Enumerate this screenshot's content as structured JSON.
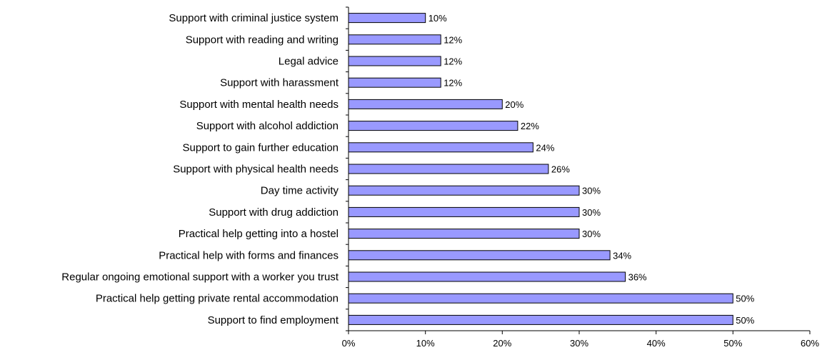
{
  "chart_data": {
    "type": "bar",
    "orientation": "horizontal",
    "title": "",
    "xlabel": "",
    "ylabel": "",
    "xlim": [
      0,
      60
    ],
    "x_ticks": [
      0,
      10,
      20,
      30,
      40,
      50,
      60
    ],
    "tick_format": "{v}%",
    "value_format": "{v}%",
    "grid": false,
    "bar_color": "#9999ff",
    "categories": [
      "Support with criminal justice system",
      "Support with reading and writing",
      "Legal advice",
      "Support with harassment",
      "Support with mental health needs",
      "Support with alcohol addiction",
      "Support to gain further education",
      "Support with physical health needs",
      "Day time activity",
      "Support with drug addiction",
      "Practical help getting into a hostel",
      "Practical help with forms and finances",
      "Regular ongoing emotional support with a worker you trust",
      "Practical help getting private rental accommodation",
      "Support to find employment"
    ],
    "values": [
      10,
      12,
      12,
      12,
      20,
      22,
      24,
      26,
      30,
      30,
      30,
      34,
      36,
      50,
      50
    ]
  }
}
